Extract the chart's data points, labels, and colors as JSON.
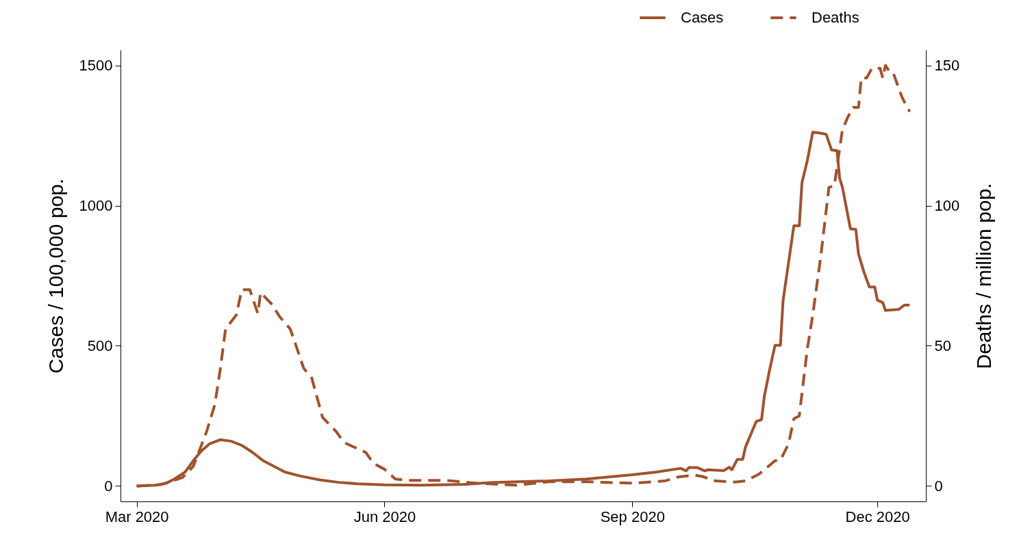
{
  "chart_data": {
    "type": "line",
    "ylabel": "Cases / 100,000 pop.",
    "y2label": "Deaths / million pop.",
    "xlim": [
      "2020-02-24",
      "2020-12-19"
    ],
    "xticks": [
      {
        "value": "2020-03-01",
        "label": "Mar 2020"
      },
      {
        "value": "2020-06-01",
        "label": "Jun 2020"
      },
      {
        "value": "2020-09-01",
        "label": "Sep 2020"
      },
      {
        "value": "2020-12-01",
        "label": "Dec 2020"
      }
    ],
    "ylim": [
      -55,
      1555
    ],
    "yticks": [
      0,
      500,
      1000,
      1500
    ],
    "y2lim": [
      -5.5,
      155.5
    ],
    "y2ticks": [
      0,
      50,
      100,
      150
    ],
    "legend": "top right",
    "grid": false,
    "series": [
      {
        "name": "Cases",
        "color": "#a0522d",
        "line_style": "solid",
        "x": [
          "2020-03-01",
          "2020-03-08",
          "2020-03-12",
          "2020-03-15",
          "2020-03-19",
          "2020-03-22",
          "2020-03-25",
          "2020-03-28",
          "2020-04-01",
          "2020-04-05",
          "2020-04-09",
          "2020-04-13",
          "2020-04-17",
          "2020-04-21",
          "2020-04-25",
          "2020-05-01",
          "2020-05-08",
          "2020-05-15",
          "2020-05-22",
          "2020-06-01",
          "2020-06-15",
          "2020-07-01",
          "2020-07-10",
          "2020-07-20",
          "2020-08-01",
          "2020-08-15",
          "2020-09-01",
          "2020-09-10",
          "2020-09-19",
          "2020-09-21",
          "2020-09-22",
          "2020-09-25",
          "2020-09-28",
          "2020-09-29",
          "2020-10-05",
          "2020-10-07",
          "2020-10-08",
          "2020-10-10",
          "2020-10-12",
          "2020-10-13",
          "2020-10-17",
          "2020-10-19",
          "2020-10-20",
          "2020-10-22",
          "2020-10-24",
          "2020-10-26",
          "2020-10-27",
          "2020-10-31",
          "2020-11-02",
          "2020-11-03",
          "2020-11-05",
          "2020-11-07",
          "2020-11-10",
          "2020-11-12",
          "2020-11-14",
          "2020-11-16",
          "2020-11-17",
          "2020-11-18",
          "2020-11-21",
          "2020-11-23",
          "2020-11-24",
          "2020-11-26",
          "2020-11-28",
          "2020-11-30",
          "2020-12-01",
          "2020-12-03",
          "2020-12-04",
          "2020-12-09",
          "2020-12-11",
          "2020-12-13"
        ],
        "values": [
          0,
          3,
          10,
          25,
          50,
          90,
          125,
          150,
          165,
          160,
          145,
          120,
          90,
          70,
          50,
          35,
          22,
          13,
          8,
          4,
          3,
          6,
          12,
          15,
          18,
          25,
          40,
          50,
          63,
          54,
          66,
          66,
          54,
          58,
          55,
          67,
          58,
          95,
          95,
          138,
          230,
          237,
          318,
          415,
          502,
          502,
          663,
          928,
          928,
          1082,
          1161,
          1262,
          1258,
          1254,
          1198,
          1196,
          1097,
          1066,
          917,
          915,
          827,
          763,
          710,
          710,
          663,
          654,
          626,
          630,
          645,
          645
        ]
      },
      {
        "name": "Deaths",
        "color": "#a0522d",
        "line_style": "dashed",
        "x": [
          "2020-03-01",
          "2020-03-10",
          "2020-03-18",
          "2020-03-22",
          "2020-03-27",
          "2020-03-30",
          "2020-04-01",
          "2020-04-03",
          "2020-04-07",
          "2020-04-09",
          "2020-04-12",
          "2020-04-15",
          "2020-04-16",
          "2020-04-20",
          "2020-04-23",
          "2020-04-27",
          "2020-04-29",
          "2020-05-02",
          "2020-05-05",
          "2020-05-09",
          "2020-05-14",
          "2020-05-17",
          "2020-05-25",
          "2020-05-28",
          "2020-06-01",
          "2020-06-05",
          "2020-06-10",
          "2020-06-24",
          "2020-07-05",
          "2020-07-20",
          "2020-08-01",
          "2020-08-15",
          "2020-09-01",
          "2020-09-13",
          "2020-09-18",
          "2020-09-24",
          "2020-09-27",
          "2020-10-02",
          "2020-10-09",
          "2020-10-13",
          "2020-10-18",
          "2020-10-24",
          "2020-10-26",
          "2020-10-29",
          "2020-10-31",
          "2020-11-02",
          "2020-11-05",
          "2020-11-07",
          "2020-11-10",
          "2020-11-13",
          "2020-11-15",
          "2020-11-18",
          "2020-11-20",
          "2020-11-22",
          "2020-11-24",
          "2020-11-25",
          "2020-11-27",
          "2020-11-29",
          "2020-12-02",
          "2020-12-03",
          "2020-12-04",
          "2020-12-06",
          "2020-12-07",
          "2020-12-10",
          "2020-12-11",
          "2020-12-13"
        ],
        "values": [
          0,
          0.5,
          3,
          7,
          19.5,
          29,
          41.5,
          56,
          61,
          70,
          70,
          61.5,
          69,
          65,
          60.5,
          56,
          50.5,
          42,
          38.5,
          24.5,
          19.5,
          15.5,
          12,
          8,
          6,
          2.5,
          2,
          2,
          1,
          0.3,
          1.5,
          1.5,
          1,
          1.8,
          3.2,
          3.9,
          3.4,
          1.8,
          1.4,
          1.8,
          4.2,
          9,
          9.2,
          15,
          24,
          25,
          49,
          61,
          82,
          106.5,
          107,
          127,
          131.5,
          135,
          135,
          145.5,
          145.5,
          149,
          149,
          145.5,
          150,
          147,
          147,
          139,
          137,
          133.5
        ],
        "axis": "y2"
      }
    ]
  }
}
